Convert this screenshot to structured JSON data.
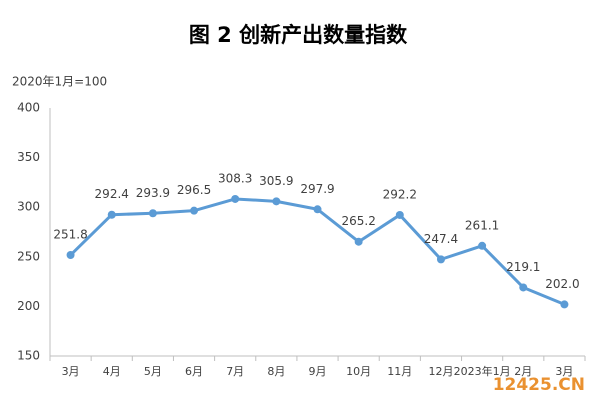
{
  "chart_data": {
    "type": "line",
    "title": "图 2  创新产出数量指数",
    "subtitle": "2020年1月=100",
    "categories": [
      "3月",
      "4月",
      "5月",
      "6月",
      "7月",
      "8月",
      "9月",
      "10月",
      "11月",
      "12月",
      "2023年1月",
      "2月",
      "3月"
    ],
    "series": [
      {
        "name": "创新产出数量指数",
        "color": "#5b9bd5",
        "values": [
          251.8,
          292.4,
          293.9,
          296.5,
          308.3,
          305.9,
          297.9,
          265.2,
          292.2,
          247.4,
          261.1,
          219.1,
          202.0
        ],
        "value_labels": [
          "251.8",
          "292.4",
          "293.9",
          "296.5",
          "308.3",
          "305.9",
          "297.9",
          "265.2",
          "292.2",
          "247.4",
          "261.1",
          "219.1",
          "202.0"
        ]
      }
    ],
    "ylim": [
      150,
      400
    ],
    "yticks": [
      150,
      200,
      250,
      300,
      350,
      400
    ],
    "grid": false,
    "watermark": "12425.CN"
  }
}
